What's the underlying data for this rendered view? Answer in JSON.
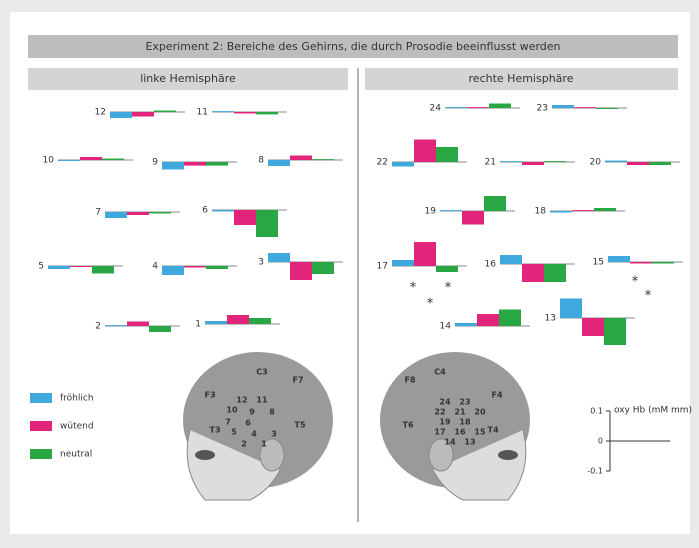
{
  "title": "Experiment 2:  Bereiche des Gehirns, die durch Prosodie beeinflusst werden",
  "legend": [
    {
      "name": "fröhlich",
      "color": "#3fa9dd"
    },
    {
      "name": "wütend",
      "color": "#e2247a"
    },
    {
      "name": "neutral",
      "color": "#2aa745"
    }
  ],
  "panels": [
    {
      "title": "linke Hemisphäre",
      "channels": [
        {
          "label": "12",
          "values": [
            -0.02,
            -0.015,
            0.005
          ]
        },
        {
          "label": "11",
          "values": [
            0.003,
            -0.005,
            -0.008
          ]
        },
        {
          "label": "10",
          "values": [
            -0.003,
            0.01,
            0.005
          ]
        },
        {
          "label": "9",
          "values": [
            -0.025,
            -0.012,
            -0.012
          ]
        },
        {
          "label": "8",
          "values": [
            -0.02,
            0.015,
            0.003
          ]
        },
        {
          "label": "7",
          "values": [
            -0.02,
            -0.01,
            -0.005
          ]
        },
        {
          "label": "6",
          "values": [
            -0.005,
            -0.05,
            -0.09
          ]
        },
        {
          "label": "5",
          "values": [
            -0.01,
            -0.003,
            -0.025
          ]
        },
        {
          "label": "4",
          "values": [
            -0.03,
            -0.005,
            -0.01
          ]
        },
        {
          "label": "3",
          "values": [
            0.03,
            -0.06,
            -0.04
          ]
        },
        {
          "label": "2",
          "values": [
            0.003,
            0.015,
            -0.02
          ]
        },
        {
          "label": "1",
          "values": [
            0.01,
            0.03,
            0.02
          ]
        }
      ],
      "head_labels": [
        "C3",
        "F3",
        "T3",
        "F7",
        "T5",
        "12",
        "11",
        "10",
        "9",
        "8",
        "7",
        "6",
        "5",
        "4",
        "3",
        "2",
        "1"
      ]
    },
    {
      "title": "rechte Hemisphäre",
      "channels": [
        {
          "label": "24",
          "values": [
            0.003,
            0.003,
            0.015
          ]
        },
        {
          "label": "23",
          "values": [
            0.01,
            0.003,
            0.0
          ]
        },
        {
          "label": "22",
          "values": [
            -0.015,
            0.075,
            0.05
          ]
        },
        {
          "label": "21",
          "values": [
            0.003,
            -0.01,
            0.003
          ]
        },
        {
          "label": "20",
          "values": [
            0.005,
            -0.01,
            -0.01
          ]
        },
        {
          "label": "19",
          "values": [
            0.003,
            -0.045,
            0.05
          ]
        },
        {
          "label": "18",
          "values": [
            -0.005,
            0.003,
            0.01
          ]
        },
        {
          "label": "17",
          "values": [
            0.02,
            0.08,
            -0.02
          ]
        },
        {
          "label": "16",
          "values": [
            0.03,
            -0.06,
            -0.06
          ]
        },
        {
          "label": "15",
          "values": [
            0.02,
            -0.005,
            -0.005
          ]
        },
        {
          "label": "14",
          "values": [
            0.01,
            0.04,
            0.055
          ]
        },
        {
          "label": "13",
          "values": [
            0.065,
            -0.06,
            -0.09
          ]
        }
      ],
      "head_labels": [
        "C4",
        "F4",
        "T4",
        "F8",
        "T6",
        "24",
        "23",
        "22",
        "21",
        "20",
        "19",
        "18",
        "17",
        "16",
        "15",
        "14",
        "13"
      ]
    }
  ],
  "significance": [
    "*",
    "*",
    "*",
    "*",
    "*"
  ],
  "scale": {
    "label": "oxy Hb (mM mm)",
    "ticks": [
      0.1,
      0,
      -0.1
    ]
  }
}
